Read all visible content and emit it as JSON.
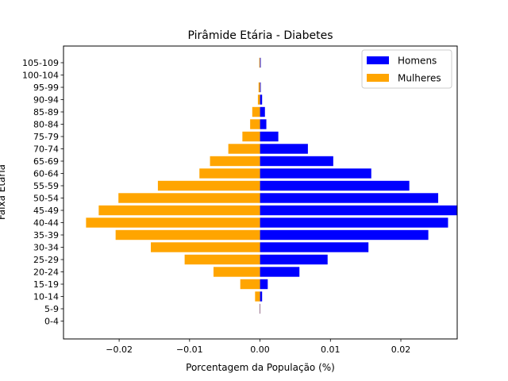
{
  "chart_data": {
    "type": "bar",
    "orientation": "horizontal",
    "title": "Pirâmide Etária - Diabetes",
    "xlabel": "Porcentagem da População (%)",
    "ylabel": "Faixa Etária",
    "categories": [
      "0-4",
      "5-9",
      "10-14",
      "15-19",
      "20-24",
      "25-29",
      "30-34",
      "35-39",
      "40-44",
      "45-49",
      "50-54",
      "55-59",
      "60-64",
      "65-69",
      "70-74",
      "75-79",
      "80-84",
      "85-89",
      "90-94",
      "95-99",
      "100-104",
      "105-109"
    ],
    "series": [
      {
        "name": "Homens",
        "color": "#0000ff",
        "values": [
          0.0,
          5e-05,
          0.0003,
          0.0011,
          0.0056,
          0.0096,
          0.0154,
          0.0239,
          0.0267,
          0.028,
          0.0253,
          0.0212,
          0.0158,
          0.0104,
          0.0068,
          0.0026,
          0.0009,
          0.0007,
          0.0003,
          0.0001,
          0.0,
          0.0001
        ]
      },
      {
        "name": "Mulheres",
        "color": "#ffa500",
        "values": [
          0.0,
          -5e-05,
          -0.0007,
          -0.0028,
          -0.0066,
          -0.0107,
          -0.0155,
          -0.0205,
          -0.0247,
          -0.0229,
          -0.0201,
          -0.0145,
          -0.0086,
          -0.0071,
          -0.0045,
          -0.0025,
          -0.0014,
          -0.0011,
          -0.0003,
          -0.0002,
          0.0,
          -0.0001
        ]
      }
    ],
    "xticks": [
      -0.02,
      -0.01,
      0.0,
      0.01,
      0.02
    ],
    "xtick_labels": [
      "−0.02",
      "−0.01",
      "0.00",
      "0.01",
      "0.02"
    ],
    "xlim": [
      -0.0279,
      0.028
    ],
    "grid": false,
    "legend_position": "upper right"
  }
}
